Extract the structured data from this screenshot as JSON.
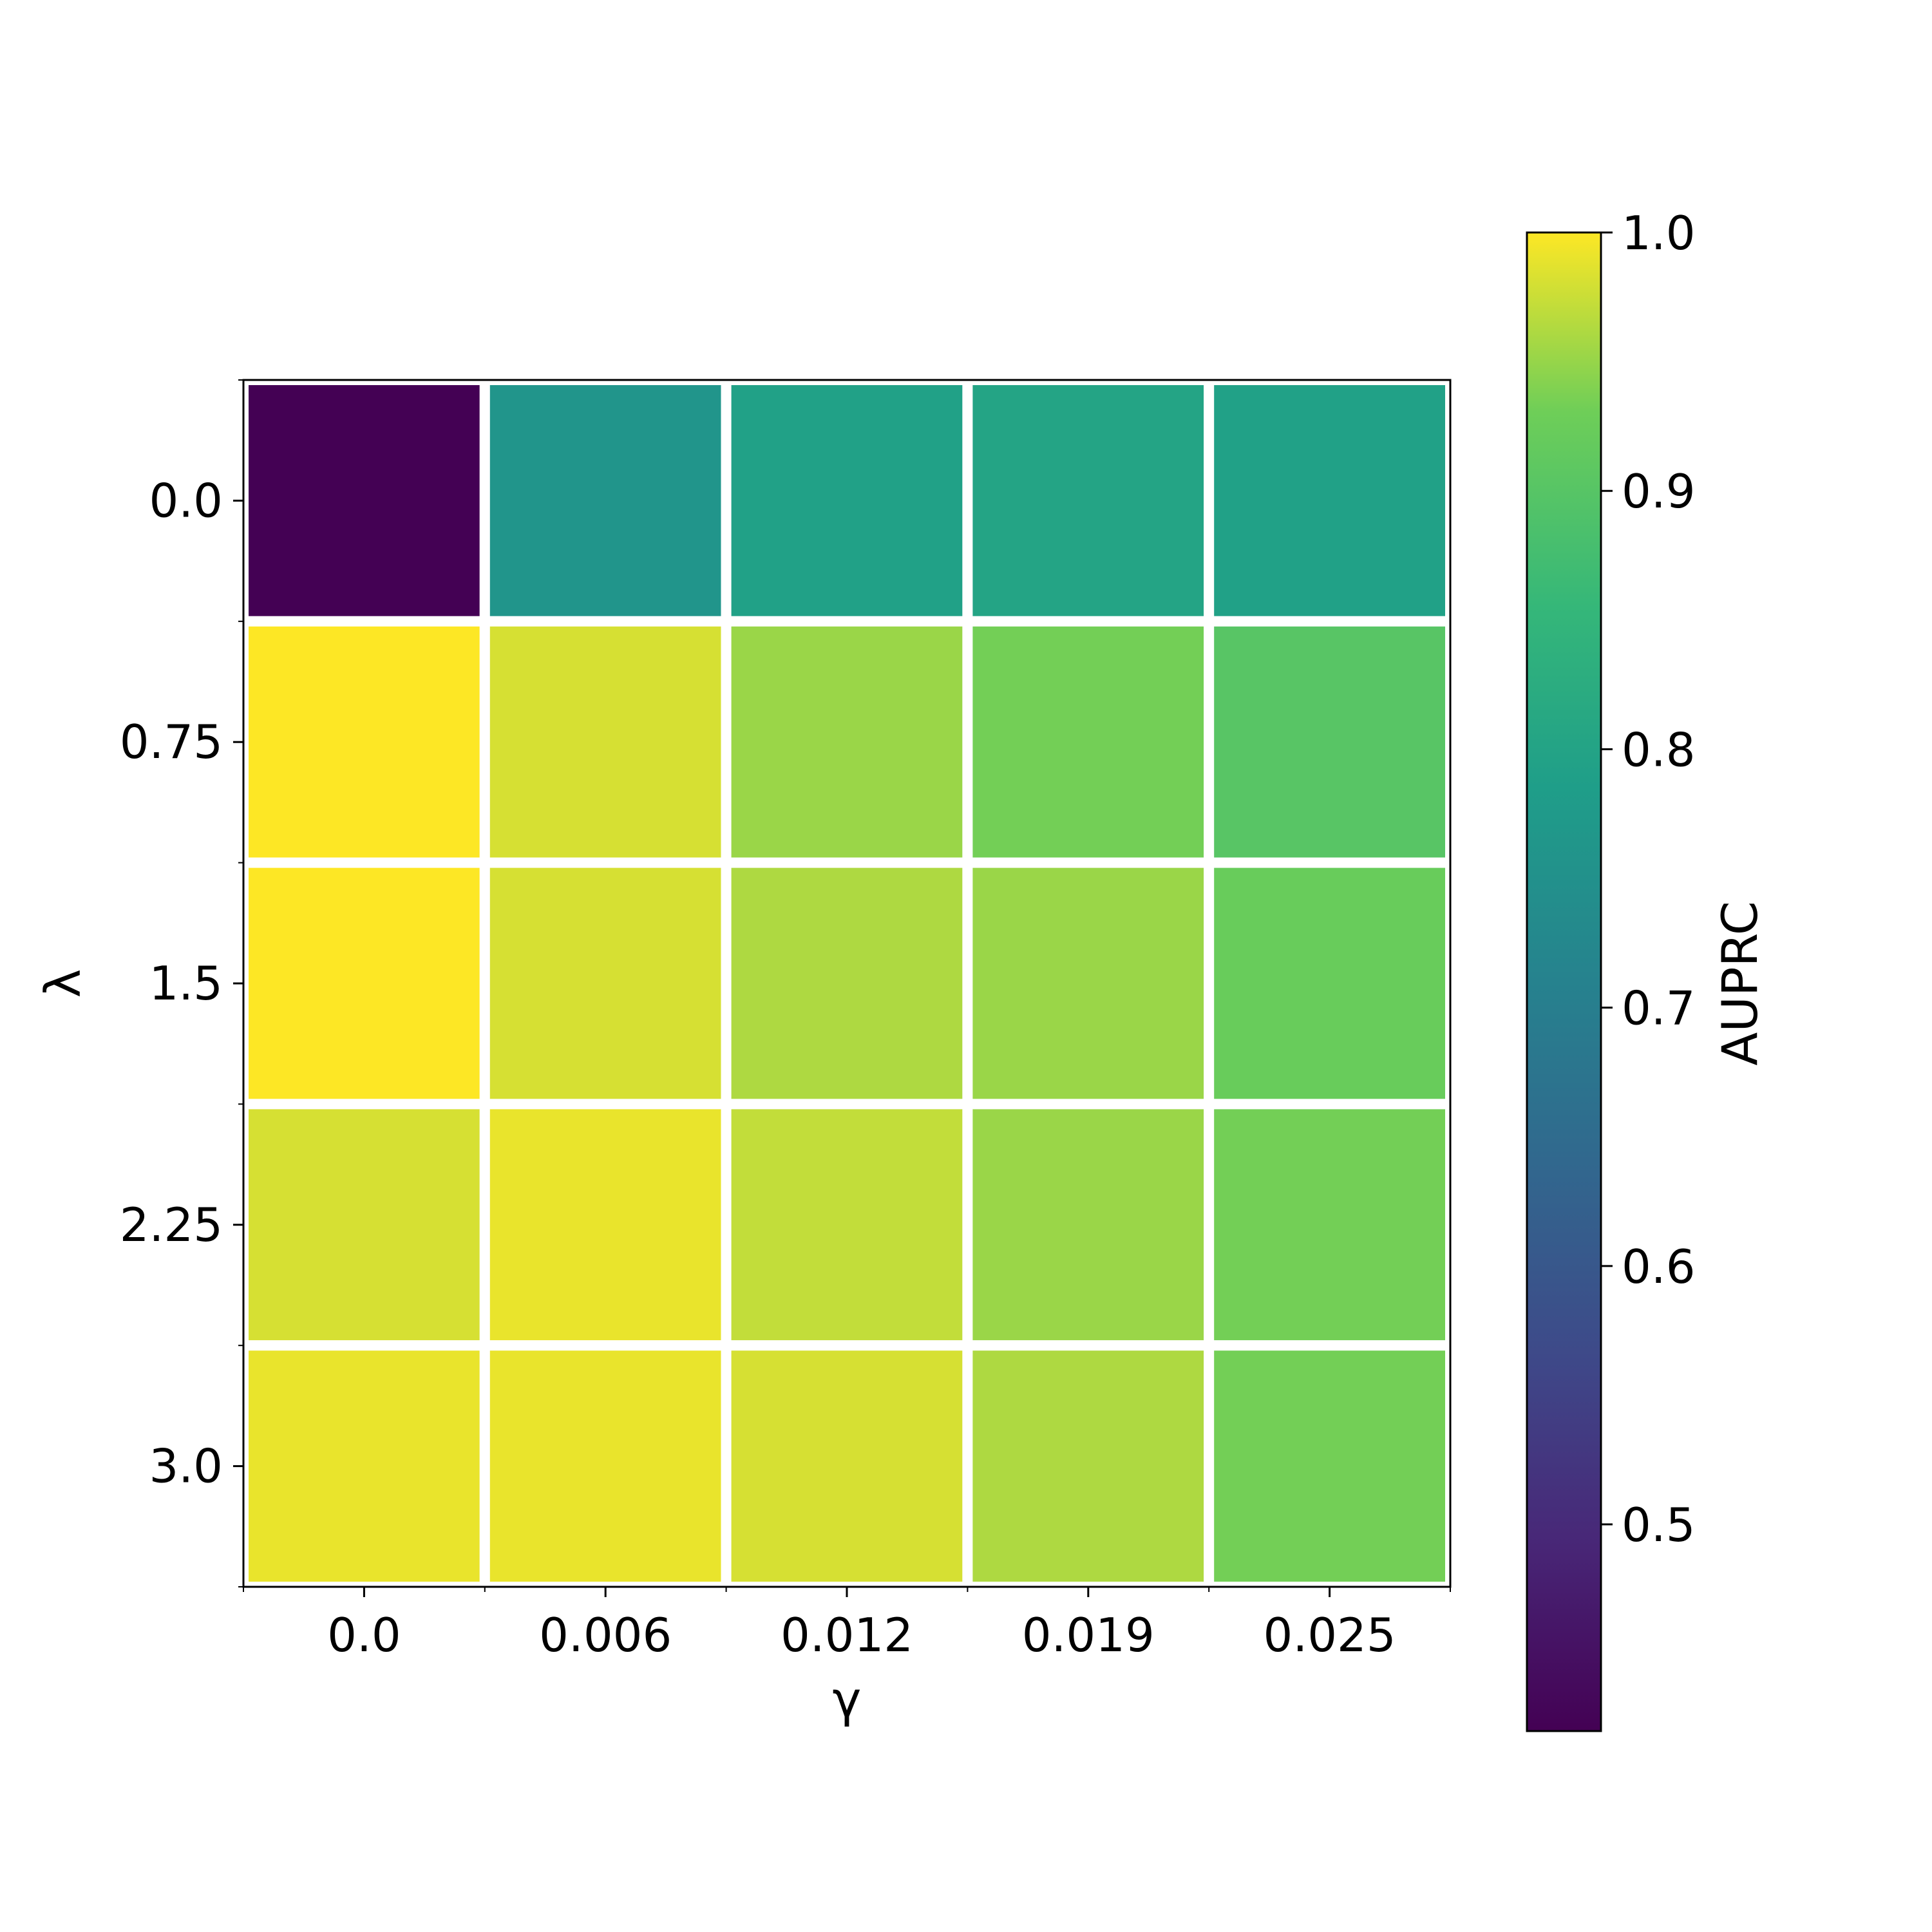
{
  "chart_data": {
    "type": "heatmap",
    "xlabel": "γ",
    "ylabel": "λ",
    "x_categories": [
      "0.0",
      "0.006",
      "0.012",
      "0.019",
      "0.025"
    ],
    "y_categories": [
      "0.0",
      "0.75",
      "1.5",
      "2.25",
      "3.0"
    ],
    "values": [
      [
        0.42,
        0.76,
        0.79,
        0.8,
        0.79
      ],
      [
        1.0,
        0.98,
        0.95,
        0.93,
        0.9
      ],
      [
        1.0,
        0.98,
        0.96,
        0.95,
        0.92
      ],
      [
        0.98,
        0.99,
        0.97,
        0.95,
        0.93
      ],
      [
        0.99,
        0.99,
        0.98,
        0.96,
        0.93
      ]
    ],
    "colormap": "viridis",
    "colorbar": {
      "label": "AUPRC",
      "range": [
        0.42,
        1.0
      ],
      "ticks": [
        "0.5",
        "0.6",
        "0.7",
        "0.8",
        "0.9",
        "1.0"
      ]
    },
    "cell_border_color": "#ffffff",
    "grid": false
  }
}
